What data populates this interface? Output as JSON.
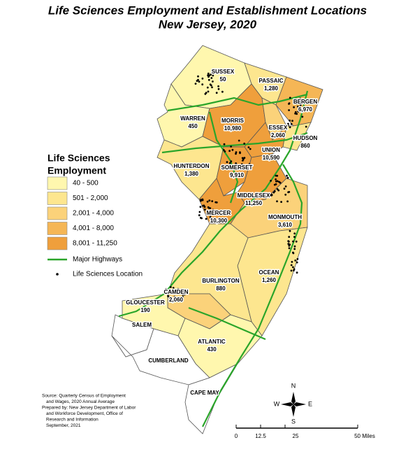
{
  "header": {
    "title": "Life Sciences Employment and Establishment Locations",
    "subtitle": "New Jersey, 2020"
  },
  "legend": {
    "title": [
      "Life Sciences",
      "Employment"
    ],
    "classes": [
      {
        "label": "40 - 500",
        "color": "#fff7ae"
      },
      {
        "label": "501 - 2,000",
        "color": "#fde68f"
      },
      {
        "label": "2,001 - 4,000",
        "color": "#fbd27a"
      },
      {
        "label": "4,001 - 8,000",
        "color": "#f5b656"
      },
      {
        "label": "8,001 - 11,250",
        "color": "#ef9f3c"
      }
    ],
    "highways": "Major Highways",
    "locations": "Life Sciences Location"
  },
  "counties": [
    {
      "name": "SUSSEX",
      "employment": "50",
      "color": "#fff7ae"
    },
    {
      "name": "PASSAIC",
      "employment": "1,280",
      "color": "#fde68f"
    },
    {
      "name": "BERGEN",
      "employment": "6,970",
      "color": "#f5b656"
    },
    {
      "name": "WARREN",
      "employment": "450",
      "color": "#fff7ae"
    },
    {
      "name": "MORRIS",
      "employment": "10,980",
      "color": "#ef9f3c"
    },
    {
      "name": "ESSEX",
      "employment": "2,060",
      "color": "#fbd27a"
    },
    {
      "name": "HUDSON",
      "employment": "860",
      "color": "#fde68f"
    },
    {
      "name": "UNION",
      "employment": "10,590",
      "color": "#ef9f3c"
    },
    {
      "name": "HUNTERDON",
      "employment": "1,380",
      "color": "#fde68f"
    },
    {
      "name": "SOMERSET",
      "employment": "9,910",
      "color": "#ef9f3c"
    },
    {
      "name": "MIDDLESEX",
      "employment": "11,250",
      "color": "#ef9f3c"
    },
    {
      "name": "MERCER",
      "employment": "10,300",
      "color": "#ef9f3c"
    },
    {
      "name": "MONMOUTH",
      "employment": "3,610",
      "color": "#fbd27a"
    },
    {
      "name": "OCEAN",
      "employment": "1,260",
      "color": "#fde68f"
    },
    {
      "name": "BURLINGTON",
      "employment": "880",
      "color": "#fde68f"
    },
    {
      "name": "CAMDEN",
      "employment": "2,060",
      "color": "#fbd27a"
    },
    {
      "name": "GLOUCESTER",
      "employment": "190",
      "color": "#fff7ae"
    },
    {
      "name": "SALEM",
      "color": "#ffffff"
    },
    {
      "name": "ATLANTIC",
      "employment": "430",
      "color": "#fff7ae"
    },
    {
      "name": "CUMBERLAND",
      "color": "#ffffff"
    },
    {
      "name": "CAPE MAY",
      "color": "#ffffff"
    }
  ],
  "source": [
    "Source: Quarterly Census of Employment",
    "and Wages, 2020 Annual Average",
    "Prepared by: New Jersey Department of Labor",
    "and Workforce Development, Office of",
    "Research and Information",
    "September, 2021"
  ],
  "compass": {
    "n": "N",
    "e": "E",
    "s": "S",
    "w": "W"
  },
  "scale": [
    "0",
    "12.5",
    "25",
    "50 Miles"
  ]
}
